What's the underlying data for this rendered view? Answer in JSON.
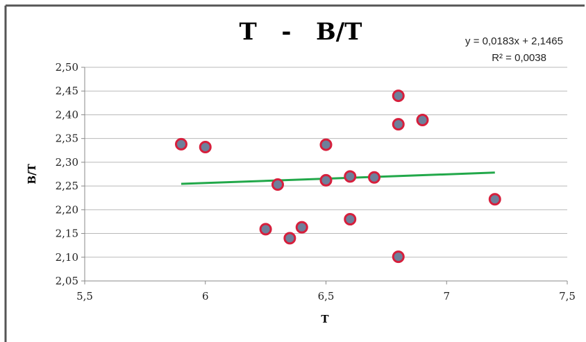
{
  "chart_data": {
    "type": "scatter",
    "title": "T   -   B/T",
    "xlabel": "T",
    "ylabel": "B/T",
    "xlim": [
      5.5,
      7.5
    ],
    "ylim": [
      2.05,
      2.5
    ],
    "x_ticks": [
      "5,5",
      "6",
      "6,5",
      "7",
      "7,5"
    ],
    "x_tick_values": [
      5.5,
      6,
      6.5,
      7,
      7.5
    ],
    "y_ticks": [
      "2,05",
      "2,10",
      "2,15",
      "2,20",
      "2,25",
      "2,30",
      "2,35",
      "2,40",
      "2,45",
      "2,50"
    ],
    "y_tick_values": [
      2.05,
      2.1,
      2.15,
      2.2,
      2.25,
      2.3,
      2.35,
      2.4,
      2.45,
      2.5
    ],
    "grid": "horizontal",
    "points": [
      {
        "x": 5.9,
        "y": 2.338
      },
      {
        "x": 6.0,
        "y": 2.332
      },
      {
        "x": 6.25,
        "y": 2.159
      },
      {
        "x": 6.3,
        "y": 2.253
      },
      {
        "x": 6.35,
        "y": 2.14
      },
      {
        "x": 6.4,
        "y": 2.163
      },
      {
        "x": 6.5,
        "y": 2.337
      },
      {
        "x": 6.5,
        "y": 2.262
      },
      {
        "x": 6.6,
        "y": 2.27
      },
      {
        "x": 6.6,
        "y": 2.18
      },
      {
        "x": 6.7,
        "y": 2.268
      },
      {
        "x": 6.8,
        "y": 2.44
      },
      {
        "x": 6.8,
        "y": 2.38
      },
      {
        "x": 6.8,
        "y": 2.101
      },
      {
        "x": 6.9,
        "y": 2.389
      },
      {
        "x": 7.2,
        "y": 2.222
      }
    ],
    "marker_fill": "#6e7f9a",
    "marker_edge": "#d61f3c",
    "trendline": {
      "equation": "y = 0,0183x + 2,1465",
      "r_squared": "R² = 0,0038",
      "slope": 0.0183,
      "intercept": 2.1465,
      "x_start": 5.9,
      "x_end": 7.2,
      "color": "#22a84a"
    },
    "gridline_color": "#b9b9b9"
  }
}
